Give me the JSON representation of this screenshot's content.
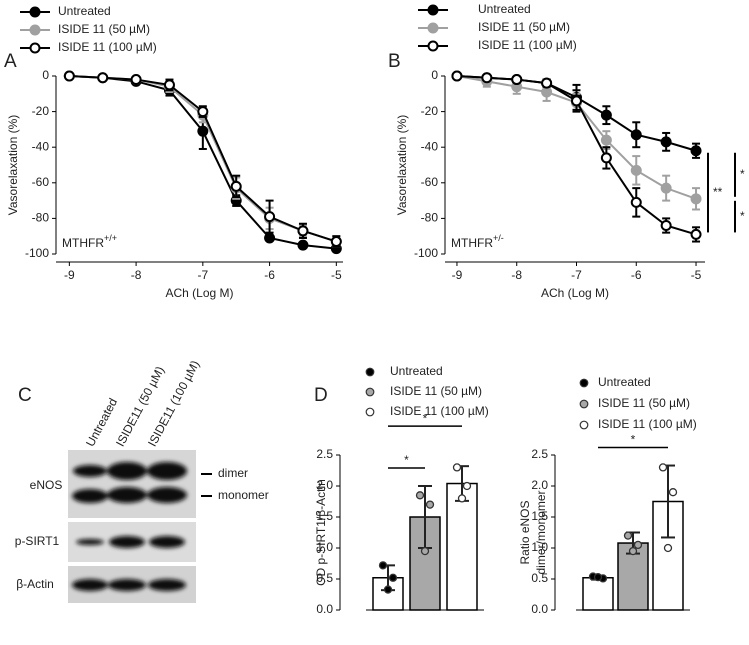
{
  "chart_data": [
    {
      "type": "line",
      "panel": "A",
      "x_label": "ACh (Log M)",
      "y_label": "Vasorelaxation (%)",
      "annotation": {
        "text": "MTHFR",
        "sup": "+/+"
      },
      "x": [
        -9,
        -8.5,
        -8,
        -7.5,
        -7,
        -6.5,
        -6,
        -5.5,
        -5
      ],
      "xlim": [
        -9.2,
        -4.9
      ],
      "xticks": [
        -9,
        -8,
        -7,
        -6,
        -5
      ],
      "ylim": [
        -100,
        0
      ],
      "yticks": [
        -100,
        -80,
        -60,
        -40,
        -20,
        0
      ],
      "series": [
        {
          "name": "Untreated",
          "color": "#000000",
          "marker": "#000000",
          "values": [
            0,
            -1,
            -3,
            -8,
            -31,
            -70,
            -91,
            -95,
            -97
          ],
          "errors": [
            0,
            0,
            1,
            3,
            10,
            3,
            1,
            1,
            1
          ]
        },
        {
          "name": "ISIDE 11 (50 µM)",
          "color": "#a0a0a0",
          "marker": "#a0a0a0",
          "values": [
            0,
            -1,
            -2,
            -6,
            -22,
            -63,
            -80,
            -87,
            -93
          ],
          "errors": [
            0,
            0,
            1,
            3,
            4,
            6,
            6,
            3,
            3
          ]
        },
        {
          "name": "ISIDE 11 (100 µM)",
          "color": "#000000",
          "marker": "#ffffff",
          "values": [
            0,
            -1,
            -2,
            -5,
            -20,
            -62,
            -79,
            -87,
            -93
          ],
          "errors": [
            0,
            0,
            1,
            3,
            3,
            6,
            9,
            4,
            3
          ]
        }
      ]
    },
    {
      "type": "line",
      "panel": "B",
      "x_label": "ACh (Log M)",
      "y_label": "Vasorelaxation (%)",
      "annotation": {
        "text": "MTHFR",
        "sup": "+/-"
      },
      "x": [
        -9,
        -8.5,
        -8,
        -7.5,
        -7,
        -6.5,
        -6,
        -5.5,
        -5
      ],
      "xlim": [
        -9.2,
        -4.85
      ],
      "xticks": [
        -9,
        -8,
        -7,
        -6,
        -5
      ],
      "ylim": [
        -100,
        0
      ],
      "yticks": [
        -100,
        -80,
        -60,
        -40,
        -20,
        0
      ],
      "series": [
        {
          "name": "Untreated",
          "color": "#000000",
          "marker": "#000000",
          "values": [
            0,
            -1,
            -2,
            -4,
            -12,
            -22,
            -33,
            -37,
            -42
          ],
          "errors": [
            0,
            1,
            1,
            2,
            7,
            5,
            7,
            5,
            4
          ]
        },
        {
          "name": "ISIDE 11 (50 µM)",
          "color": "#a0a0a0",
          "marker": "#a0a0a0",
          "values": [
            0,
            -3,
            -6,
            -9,
            -15,
            -36,
            -53,
            -63,
            -69
          ],
          "errors": [
            0,
            3,
            4,
            5,
            5,
            5,
            8,
            7,
            6
          ]
        },
        {
          "name": "ISIDE 11 (100 µM)",
          "color": "#000000",
          "marker": "#ffffff",
          "values": [
            0,
            -1,
            -2,
            -4,
            -14,
            -46,
            -71,
            -84,
            -89
          ],
          "errors": [
            0,
            1,
            1,
            2,
            6,
            6,
            8,
            4,
            4
          ]
        }
      ],
      "significance": [
        {
          "text": "**",
          "pair": [
            0,
            2
          ]
        },
        {
          "text": "*",
          "pair": [
            0,
            1
          ]
        },
        {
          "text": "*",
          "pair": [
            1,
            2
          ]
        }
      ]
    },
    {
      "type": "bar",
      "panel": "D",
      "y_label": "OD p-SIRT1/β-Actin",
      "ylim": [
        0,
        2.5
      ],
      "yticks": [
        {
          "value": 0,
          "label": "0.0"
        },
        {
          "value": 0.5,
          "label": "0.5"
        },
        {
          "value": 1,
          "label": "1.0"
        },
        {
          "value": 1.5,
          "label": "1.5"
        },
        {
          "value": 2,
          "label": "2.0"
        },
        {
          "value": 2.5,
          "label": "2.5"
        }
      ],
      "series": [
        {
          "name": "Untreated",
          "color": "#ffffff",
          "marker": "#000000",
          "values": [
            0.52
          ],
          "errors": [
            0.2
          ],
          "points": [
            0.72,
            0.52,
            0.33
          ]
        },
        {
          "name": "ISIDE 11 (50 µM)",
          "color": "#a8a8a8",
          "marker": "#a8a8a8",
          "values": [
            1.5
          ],
          "errors": [
            0.5
          ],
          "points": [
            1.85,
            1.7,
            0.95
          ]
        },
        {
          "name": "ISIDE 11 (100 µM)",
          "color": "#ffffff",
          "marker": "#ffffff",
          "values": [
            2.04
          ],
          "errors": [
            0.28
          ],
          "points": [
            2.3,
            2.0,
            1.8
          ]
        }
      ],
      "significance": [
        {
          "text": "*",
          "pair": [
            0,
            1
          ]
        },
        {
          "text": "*",
          "pair": [
            0,
            2
          ]
        }
      ]
    },
    {
      "type": "bar",
      "y_label": [
        "Ratio eNOS",
        "dimer/monomer"
      ],
      "ylim": [
        0,
        2.5
      ],
      "yticks": [
        {
          "value": 0,
          "label": "0.0"
        },
        {
          "value": 0.5,
          "label": "0.5"
        },
        {
          "value": 1,
          "label": "1.0"
        },
        {
          "value": 1.5,
          "label": "1.5"
        },
        {
          "value": 2,
          "label": "2.0"
        },
        {
          "value": 2.5,
          "label": "2.5"
        }
      ],
      "series": [
        {
          "name": "Untreated",
          "color": "#ffffff",
          "marker": "#000000",
          "values": [
            0.52
          ],
          "errors": [
            0.03
          ],
          "points": [
            0.54,
            0.51,
            0.53
          ]
        },
        {
          "name": "ISIDE 11 (50 µM)",
          "color": "#a8a8a8",
          "marker": "#a8a8a8",
          "values": [
            1.08
          ],
          "errors": [
            0.17
          ],
          "points": [
            1.2,
            1.05,
            0.95
          ]
        },
        {
          "name": "ISIDE 11 (100 µM)",
          "color": "#ffffff",
          "marker": "#ffffff",
          "values": [
            1.75
          ],
          "errors": [
            0.58
          ],
          "points": [
            2.3,
            1.9,
            1.0
          ]
        }
      ],
      "significance": [
        {
          "text": "*",
          "pair": [
            0,
            2
          ]
        }
      ]
    }
  ],
  "blot": {
    "panel": "C",
    "lanes": [
      "Untreated",
      "ISIDE11 (50 µM)",
      "ISIDE11 (100 µM)"
    ],
    "rows": [
      "eNOS",
      "p-SIRT1",
      "β-Actin"
    ],
    "bands": [
      "dimer",
      "monomer"
    ]
  }
}
